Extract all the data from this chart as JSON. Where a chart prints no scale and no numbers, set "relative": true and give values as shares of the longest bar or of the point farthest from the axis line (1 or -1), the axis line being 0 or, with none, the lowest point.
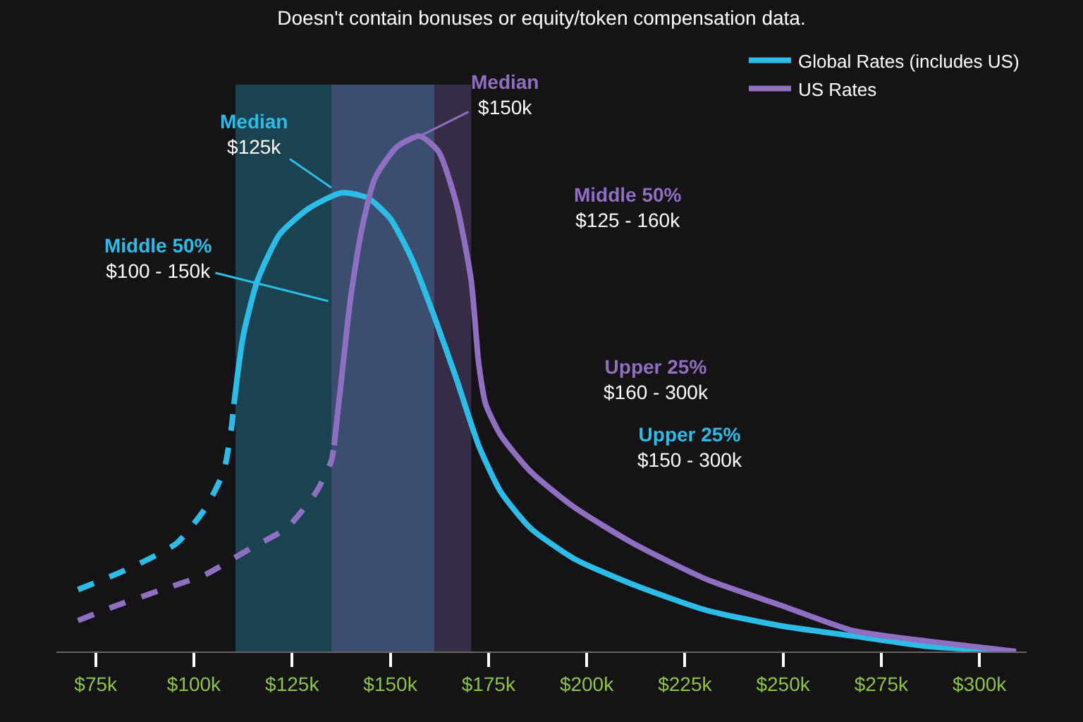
{
  "chart_data": {
    "type": "line",
    "subtitle": "Doesn't contain bonuses or equity/token compensation data.",
    "relative": true,
    "xlim": [
      65,
      312
    ],
    "xticks": [
      {
        "value": 75,
        "label": "$75k"
      },
      {
        "value": 100,
        "label": "$100k"
      },
      {
        "value": 125,
        "label": "$125k"
      },
      {
        "value": 150,
        "label": "$150k"
      },
      {
        "value": 175,
        "label": "$175k"
      },
      {
        "value": 200,
        "label": "$200k"
      },
      {
        "value": 225,
        "label": "$225k"
      },
      {
        "value": 250,
        "label": "$250k"
      },
      {
        "value": 275,
        "label": "$275k"
      },
      {
        "value": 300,
        "label": "$300k"
      }
    ],
    "grid": false,
    "legend": "top right",
    "marker": "none",
    "series": [
      {
        "color": "#2bbde8",
        "line_style": "dashed",
        "x": [
          70.5,
          83.2,
          95.6,
          103.1,
          107.6,
          109.5,
          110.2
        ],
        "values": [
          0.12,
          0.16,
          0.21,
          0.28,
          0.35,
          0.43,
          0.48
        ]
      },
      {
        "name": "Global Rates (includes US)",
        "color": "#2bbde8",
        "line_style": "solid",
        "x": [
          110.2,
          112.5,
          116.2,
          121.9,
          129.3,
          137.6,
          144.3,
          150.0,
          155.6,
          161.2,
          166.8,
          172.5,
          178.1,
          185.6,
          196.8,
          211.8,
          230.5,
          249.3,
          268.0,
          286.8,
          309.3
        ],
        "values": [
          0.48,
          0.61,
          0.72,
          0.81,
          0.86,
          0.89,
          0.88,
          0.84,
          0.76,
          0.65,
          0.53,
          0.4,
          0.31,
          0.24,
          0.18,
          0.13,
          0.08,
          0.05,
          0.03,
          0.01,
          0
        ]
      },
      {
        "color": "#8e6fc1",
        "line_style": "dashed",
        "x": [
          70.5,
          80.6,
          91.9,
          103.1,
          114.4,
          123.7,
          131.2,
          135.0,
          135.7
        ],
        "values": [
          0.06,
          0.09,
          0.12,
          0.15,
          0.2,
          0.24,
          0.31,
          0.37,
          0.4
        ]
      },
      {
        "name": "US Rates",
        "color": "#8e6fc1",
        "line_style": "solid",
        "x": [
          135.7,
          137.6,
          139.8,
          142.5,
          146.2,
          151.8,
          157.5,
          162.3,
          166.8,
          170.6,
          172.5,
          174.3,
          178.1,
          185.6,
          196.8,
          211.8,
          230.5,
          249.3,
          268.0,
          286.8,
          309.3
        ],
        "values": [
          0.4,
          0.53,
          0.68,
          0.81,
          0.92,
          0.98,
          1.0,
          0.97,
          0.87,
          0.72,
          0.56,
          0.48,
          0.42,
          0.35,
          0.28,
          0.21,
          0.14,
          0.09,
          0.04,
          0.02,
          0
        ]
      }
    ],
    "bands": [
      {
        "axis": "x",
        "from": 110.6,
        "to": 161.2,
        "color": "#2bbde8"
      },
      {
        "axis": "x",
        "from": 135.0,
        "to": 170.6,
        "color": "#8e6fc1"
      }
    ],
    "annotations": [
      {
        "text": "Median\n$125k",
        "x": 135.0,
        "y": 0.9
      },
      {
        "text": "Median\n$150k",
        "x": 157.5,
        "y": 1.0
      },
      {
        "text": "Middle 50%\n$100 - 150k",
        "x": 134.2,
        "y": 0.68
      },
      "Middle 50%\n$125 - 160k",
      "Upper 25%\n$160 - 300k",
      "Upper 25%\n$150 - 300k"
    ]
  }
}
